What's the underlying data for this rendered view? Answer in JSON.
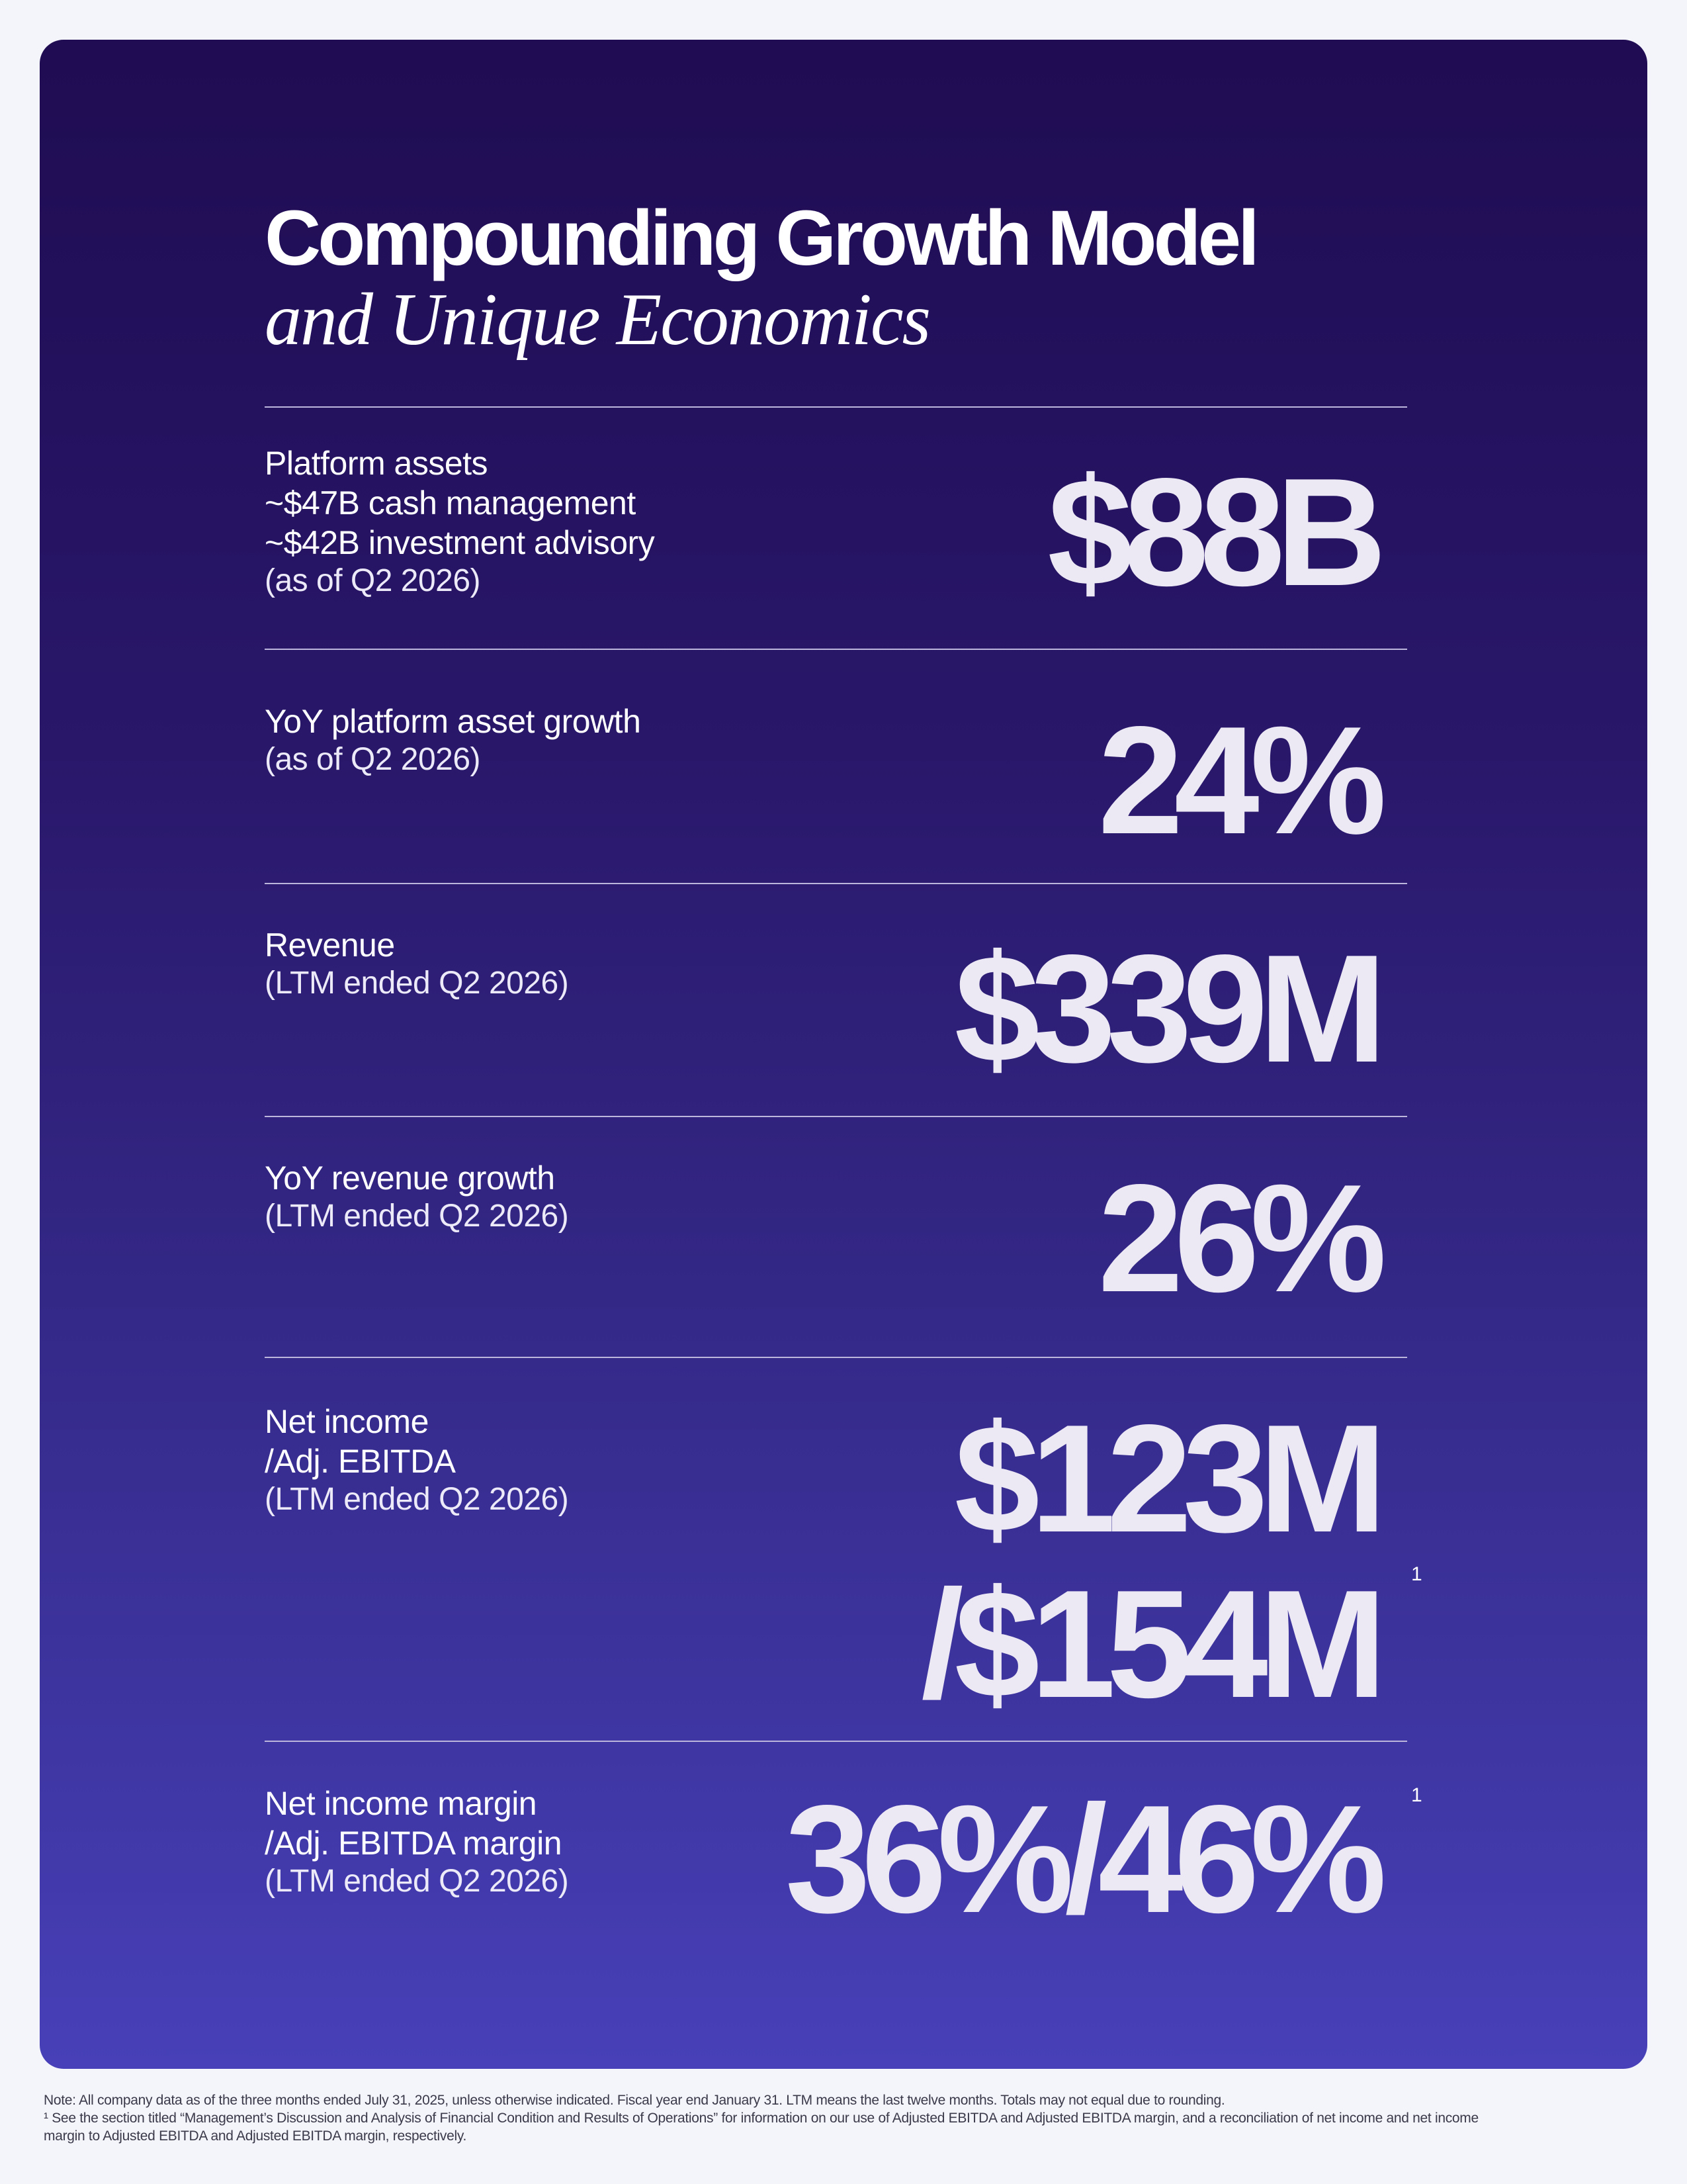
{
  "title": {
    "main": "Compounding Growth Model",
    "sub": "and Unique Economics"
  },
  "metrics": [
    {
      "lines": [
        "Platform assets",
        "~$47B cash management",
        "~$42B investment advisory"
      ],
      "note": "(as of Q2 2026)",
      "value": "$88B"
    },
    {
      "lines": [
        "YoY platform asset growth"
      ],
      "note": "(as of Q2 2026)",
      "value": "24%"
    },
    {
      "lines": [
        "Revenue"
      ],
      "note": "(LTM ended Q2 2026)",
      "value": "$339M"
    },
    {
      "lines": [
        "YoY revenue growth"
      ],
      "note": "(LTM ended Q2 2026)",
      "value": "26%"
    },
    {
      "lines": [
        "Net income",
        "/Adj. EBITDA"
      ],
      "note": "(LTM ended Q2 2026)",
      "value_lines": [
        "$123M",
        "/$154M"
      ],
      "footnote_mark": "1"
    },
    {
      "lines": [
        "Net income margin",
        "/Adj. EBITDA margin"
      ],
      "note": "(LTM ended Q2 2026)",
      "value": "36%/46%",
      "footnote_mark": "1"
    }
  ],
  "footer": {
    "note": "Note: All company data as of the three months ended July 31, 2025, unless otherwise indicated. Fiscal year end January 31. LTM means the last twelve months. Totals may not equal due to rounding.",
    "footnote_1a": "¹ See the section titled “Management’s Discussion and Analysis of Financial Condition and Results of Operations” for information on our use of Adjusted EBITDA and Adjusted EBITDA margin, and a reconciliation of net income and net income",
    "footnote_1b": "margin to Adjusted EBITDA and Adjusted EBITDA margin, respectively."
  }
}
